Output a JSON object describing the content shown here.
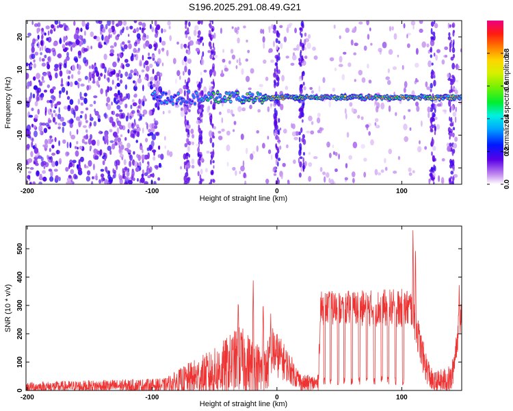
{
  "title": "S196.2025.291.08.49.G21",
  "chart_data": [
    {
      "type": "heatmap",
      "title": "",
      "xlabel": "Height of straight line (km)",
      "ylabel": "Frequency (Hz)",
      "xlim": [
        -201,
        148
      ],
      "ylim": [
        -25,
        25
      ],
      "xticks": [
        -200,
        -100,
        0,
        100
      ],
      "yticks": [
        -20,
        -10,
        0,
        10,
        20
      ],
      "colorbar": {
        "label": "Normalized spectral amplitude",
        "range": [
          0,
          1
        ],
        "ticks": [
          0.0,
          0.2,
          0.4,
          0.6,
          0.8
        ],
        "tick_labels": [
          "0.0",
          "0.2",
          "0.4",
          "0.6",
          "0.8"
        ]
      },
      "features": [
        {
          "kind": "noise",
          "x_range": [
            -201,
            -92
          ],
          "density": "high",
          "amp": [
            0.05,
            0.2
          ]
        },
        {
          "kind": "noise",
          "x_range": [
            -92,
            148
          ],
          "density": "low",
          "amp": [
            0.02,
            0.1
          ]
        },
        {
          "kind": "vertical_band",
          "x": -72,
          "amp": 0.1
        },
        {
          "kind": "vertical_band",
          "x": -61,
          "amp": 0.1
        },
        {
          "kind": "vertical_band",
          "x": -52,
          "amp": 0.1
        },
        {
          "kind": "vertical_band",
          "x": 0,
          "amp": 0.12
        },
        {
          "kind": "vertical_band",
          "x": 20,
          "amp": 0.12
        },
        {
          "kind": "vertical_band",
          "x": 125,
          "amp": 0.12
        },
        {
          "kind": "vertical_band",
          "x": 140,
          "amp": 0.1
        },
        {
          "kind": "signal_ridge",
          "x_range": [
            -100,
            148
          ],
          "frequency": 1.5
        }
      ]
    },
    {
      "type": "line",
      "title": "",
      "xlabel": "Height of straight line (km)",
      "ylabel": "SNR (10 * v/v)",
      "xlim": [
        -201,
        148
      ],
      "ylim": [
        0,
        580
      ],
      "xticks": [
        -200,
        -100,
        0,
        100
      ],
      "yticks": [
        0,
        100,
        200,
        300,
        400,
        500
      ],
      "color": "#ee3333",
      "envelope": [
        {
          "x": -201,
          "base": 12,
          "spread": 18
        },
        {
          "x": -90,
          "base": 18,
          "spread": 25
        },
        {
          "x": -70,
          "base": 40,
          "spread": 60
        },
        {
          "x": -50,
          "base": 60,
          "spread": 90
        },
        {
          "x": -30,
          "base": 110,
          "spread": 120
        },
        {
          "x": -10,
          "base": 60,
          "spread": 90
        },
        {
          "x": -3,
          "base": 140,
          "spread": 90
        },
        {
          "x": 8,
          "base": 90,
          "spread": 60
        },
        {
          "x": 20,
          "base": 25,
          "spread": 30
        },
        {
          "x": 33,
          "base": 25,
          "spread": 30
        },
        {
          "x": 35,
          "base": 290,
          "spread": 60
        },
        {
          "x": 108,
          "base": 290,
          "spread": 70
        },
        {
          "x": 118,
          "base": 100,
          "spread": 60
        },
        {
          "x": 125,
          "base": 25,
          "spread": 40
        },
        {
          "x": 140,
          "base": 40,
          "spread": 50
        },
        {
          "x": 148,
          "base": 300,
          "spread": 60
        }
      ],
      "spikes": [
        {
          "x": -31,
          "y": 330
        },
        {
          "x": -19,
          "y": 390
        },
        {
          "x": -11,
          "y": 320
        },
        {
          "x": -5,
          "y": 270
        },
        {
          "x": 109,
          "y": 585
        },
        {
          "x": 111,
          "y": 520
        },
        {
          "x": 146,
          "y": 380
        }
      ],
      "dips": [
        38,
        43,
        49,
        54,
        60,
        66,
        72,
        78,
        84,
        89,
        95,
        101
      ]
    }
  ]
}
